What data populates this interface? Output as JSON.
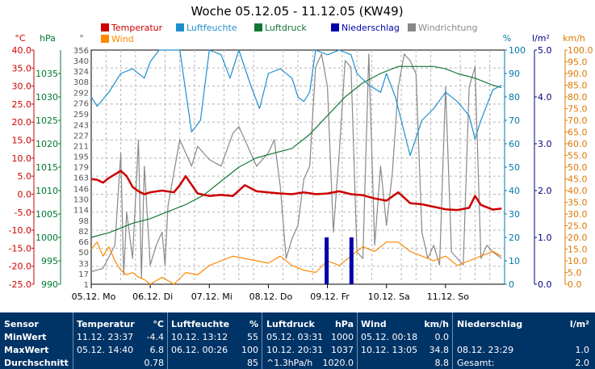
{
  "chart_data": {
    "type": "line",
    "title": "Woche 05.12.05 - 11.12.05 (KW49)",
    "x_ticks": [
      "05.12. Mo",
      "06.12. Di",
      "07.12. Mi",
      "08.12. Do",
      "09.12. Fr",
      "10.12. Sa",
      "11.12. So"
    ],
    "axes": {
      "temp": {
        "unit": "°C",
        "ticks": [
          "40.0",
          "35.0",
          "30.0",
          "25.0",
          "20.0",
          "15.0",
          "10.0",
          "5.0",
          "0.0",
          "-5.0",
          "-10.0",
          "-15.0",
          "-20.0",
          "-25.0"
        ],
        "range": [
          -25,
          40
        ],
        "color": "#cc0000"
      },
      "pressure": {
        "unit": "hPa",
        "ticks": [
          "1035",
          "1030",
          "1025",
          "1020",
          "1015",
          "1010",
          "1005",
          "1000",
          "995",
          "990"
        ],
        "range": [
          990,
          1040
        ],
        "color": "#007733"
      },
      "direction": {
        "unit": "°",
        "ticks": [
          "356",
          "340",
          "324",
          "308",
          "292",
          "276",
          "259",
          "243",
          "227",
          "211",
          "195",
          "179",
          "163",
          "146",
          "130",
          "114",
          "98",
          "82",
          "66",
          "50",
          "33",
          "17",
          "1"
        ],
        "range": [
          1,
          356
        ],
        "color": "#555555"
      },
      "humidity": {
        "unit": "%",
        "ticks": [
          "100",
          "90",
          "80",
          "70",
          "60",
          "50",
          "40",
          "30",
          "20",
          "10",
          "0"
        ],
        "range": [
          0,
          100
        ],
        "color": "#0077aa"
      },
      "rain": {
        "unit": "l/m²",
        "ticks": [
          "5.0",
          "4.0",
          "3.0",
          "2.0",
          "1.0",
          "0.0"
        ],
        "range": [
          0,
          5
        ],
        "color": "#000080"
      },
      "wind": {
        "unit": "km/h",
        "ticks": [
          "100.0",
          "95.0",
          "90.0",
          "85.0",
          "80.0",
          "75.0",
          "70.0",
          "65.0",
          "60.0",
          "55.0",
          "50.0",
          "45.0",
          "40.0",
          "35.0",
          "30.0",
          "25.0",
          "20.0",
          "15.0",
          "10.0",
          "5.0",
          "0.0"
        ],
        "range": [
          0,
          100
        ],
        "color": "#dd7700"
      }
    },
    "legend": [
      {
        "name": "Temperatur",
        "color": "#cc0000"
      },
      {
        "name": "Luftfeuchte",
        "color": "#1e8fcc"
      },
      {
        "name": "Luftdruck",
        "color": "#117733"
      },
      {
        "name": "Niederschlag",
        "color": "#0000aa"
      },
      {
        "name": "Windrichtung",
        "color": "#888888"
      },
      {
        "name": "Wind",
        "color": "#ff8800"
      }
    ],
    "grid": true,
    "series": [
      {
        "name": "Temperatur",
        "axis": "temp",
        "color": "#cc0000",
        "x": [
          0,
          0.1,
          0.2,
          0.3,
          0.4,
          0.5,
          0.6,
          0.7,
          0.8,
          0.9,
          1.0,
          1.2,
          1.4,
          1.5,
          1.6,
          1.8,
          2.0,
          2.2,
          2.4,
          2.6,
          2.8,
          3.0,
          3.2,
          3.4,
          3.6,
          3.8,
          4.0,
          4.2,
          4.4,
          4.6,
          4.8,
          5.0,
          5.2,
          5.4,
          5.6,
          5.8,
          6.0,
          6.2,
          6.4,
          6.5,
          6.6,
          6.8,
          6.95
        ],
        "y": [
          4.2,
          4.0,
          3.2,
          4.5,
          5.5,
          6.5,
          5.0,
          2.0,
          0.8,
          0.0,
          0.5,
          1.0,
          0.5,
          2.5,
          5.0,
          0.2,
          -0.5,
          -0.2,
          -0.5,
          2.5,
          0.8,
          0.5,
          0.2,
          0.0,
          0.5,
          0.0,
          0.2,
          0.8,
          0.0,
          -0.3,
          -1.2,
          -1.8,
          0.5,
          -2.5,
          -2.8,
          -3.5,
          -4.2,
          -4.4,
          -3.8,
          -0.5,
          -3.0,
          -4.3,
          -4.0
        ]
      },
      {
        "name": "Luftfeuchte",
        "axis": "humidity",
        "color": "#1e8fcc",
        "x": [
          0,
          0.1,
          0.3,
          0.5,
          0.7,
          0.9,
          1.0,
          1.15,
          1.3,
          1.5,
          1.7,
          1.85,
          2.0,
          2.2,
          2.35,
          2.5,
          2.7,
          2.85,
          3.0,
          3.2,
          3.4,
          3.5,
          3.6,
          3.7,
          3.8,
          4.0,
          4.2,
          4.4,
          4.5,
          4.7,
          4.9,
          5.0,
          5.15,
          5.25,
          5.4,
          5.6,
          5.8,
          6.0,
          6.2,
          6.4,
          6.5,
          6.6,
          6.8,
          6.95
        ],
        "y": [
          80,
          76,
          82,
          90,
          92,
          88,
          95,
          100,
          100,
          100,
          65,
          70,
          100,
          98,
          88,
          100,
          85,
          75,
          90,
          92,
          88,
          80,
          78,
          82,
          100,
          98,
          100,
          98,
          90,
          85,
          82,
          90,
          80,
          70,
          55,
          70,
          75,
          82,
          78,
          72,
          62,
          70,
          83,
          85
        ]
      },
      {
        "name": "Luftdruck",
        "axis": "pressure",
        "color": "#117733",
        "x": [
          0,
          0.3,
          0.5,
          0.7,
          1.0,
          1.3,
          1.6,
          1.9,
          2.2,
          2.5,
          2.8,
          3.1,
          3.4,
          3.7,
          4.0,
          4.3,
          4.6,
          4.9,
          5.2,
          5.5,
          5.8,
          6.0,
          6.2,
          6.5,
          6.8,
          6.95
        ],
        "y": [
          1000,
          1001,
          1002,
          1003,
          1004,
          1005.5,
          1007,
          1009,
          1012,
          1015,
          1017,
          1018,
          1019,
          1022,
          1026,
          1030,
          1033,
          1035,
          1036.5,
          1036.5,
          1036.5,
          1036,
          1035,
          1034,
          1032.5,
          1032
        ]
      },
      {
        "name": "Niederschlag",
        "axis": "rain",
        "color": "#0000aa",
        "type": "bar",
        "x": [
          3.98,
          4.4
        ],
        "y": [
          1.0,
          1.0
        ]
      },
      {
        "name": "Windrichtung",
        "axis": "direction",
        "color": "#888888",
        "x": [
          0,
          0.2,
          0.4,
          0.5,
          0.55,
          0.6,
          0.7,
          0.8,
          0.85,
          0.9,
          1.0,
          1.1,
          1.2,
          1.25,
          1.3,
          1.4,
          1.5,
          1.6,
          1.7,
          1.8,
          1.9,
          2.0,
          2.2,
          2.4,
          2.5,
          2.6,
          2.8,
          3.0,
          3.1,
          3.2,
          3.3,
          3.4,
          3.5,
          3.6,
          3.7,
          3.8,
          3.9,
          4.0,
          4.1,
          4.2,
          4.3,
          4.4,
          4.5,
          4.6,
          4.7,
          4.8,
          4.9,
          5.0,
          5.1,
          5.2,
          5.3,
          5.4,
          5.5,
          5.6,
          5.7,
          5.8,
          5.9,
          6.0,
          6.1,
          6.2,
          6.3,
          6.4,
          6.5,
          6.6,
          6.7,
          6.8,
          6.95
        ],
        "y": [
          20,
          25,
          60,
          200,
          15,
          110,
          40,
          220,
          10,
          180,
          30,
          60,
          80,
          30,
          120,
          170,
          220,
          200,
          180,
          210,
          200,
          190,
          180,
          230,
          240,
          220,
          180,
          200,
          220,
          150,
          40,
          70,
          90,
          160,
          180,
          330,
          350,
          300,
          80,
          200,
          340,
          330,
          50,
          40,
          350,
          60,
          180,
          90,
          170,
          300,
          350,
          340,
          320,
          80,
          40,
          60,
          30,
          300,
          50,
          40,
          30,
          300,
          330,
          40,
          60,
          50,
          40
        ]
      },
      {
        "name": "Wind",
        "axis": "wind",
        "color": "#ff8800",
        "x": [
          0,
          0.1,
          0.2,
          0.3,
          0.4,
          0.5,
          0.6,
          0.7,
          0.8,
          0.9,
          1.0,
          1.2,
          1.4,
          1.6,
          1.8,
          2.0,
          2.2,
          2.4,
          2.6,
          2.8,
          3.0,
          3.2,
          3.4,
          3.6,
          3.8,
          4.0,
          4.2,
          4.4,
          4.6,
          4.8,
          5.0,
          5.2,
          5.4,
          5.6,
          5.8,
          6.0,
          6.2,
          6.4,
          6.6,
          6.8,
          6.95
        ],
        "y": [
          15,
          18,
          12,
          16,
          10,
          6,
          4,
          5,
          3,
          2,
          0,
          3,
          0,
          5,
          4,
          8,
          10,
          12,
          11,
          10,
          9,
          12,
          8,
          6,
          5,
          10,
          8,
          12,
          16,
          14,
          18,
          18,
          14,
          12,
          10,
          12,
          8,
          10,
          12,
          14,
          12
        ]
      }
    ]
  },
  "stats": {
    "headers": {
      "sensor": "Sensor",
      "temp": "Temperatur",
      "temp_unit": "°C",
      "hum": "Luftfeuchte",
      "hum_unit": "%",
      "press": "Luftdruck",
      "press_unit": "hPa",
      "wind": "Wind",
      "wind_unit": "km/h",
      "rain": "Niederschlag",
      "rain_unit": "l/m²"
    },
    "rows": [
      {
        "label": "MinWert",
        "temp_time": "11.12. 23:37",
        "temp_val": "-4.4",
        "hum_time": "10.12. 13:12",
        "hum_val": "55",
        "press_time": "05.12. 03:31",
        "press_val": "1000",
        "wind_time": "05.12. 00:18",
        "wind_val": "0.0",
        "rain_time": "",
        "rain_val": ""
      },
      {
        "label": "MaxWert",
        "temp_time": "05.12. 14:40",
        "temp_val": "6.8",
        "hum_time": "06.12. 00:26",
        "hum_val": "100",
        "press_time": "10.12. 20:31",
        "press_val": "1037",
        "wind_time": "10.12. 13:05",
        "wind_val": "34.8",
        "rain_time": "08.12. 23:29",
        "rain_val": "1.0"
      },
      {
        "label": "Durchschnitt",
        "temp_time": "",
        "temp_val": "0.78",
        "hum_time": "",
        "hum_val": "85",
        "press_time": "^1.3hPa/h",
        "press_val": "1020.0",
        "wind_time": "",
        "wind_val": "8.8",
        "rain_time": "Gesamt:",
        "rain_val": "2.0"
      }
    ]
  }
}
